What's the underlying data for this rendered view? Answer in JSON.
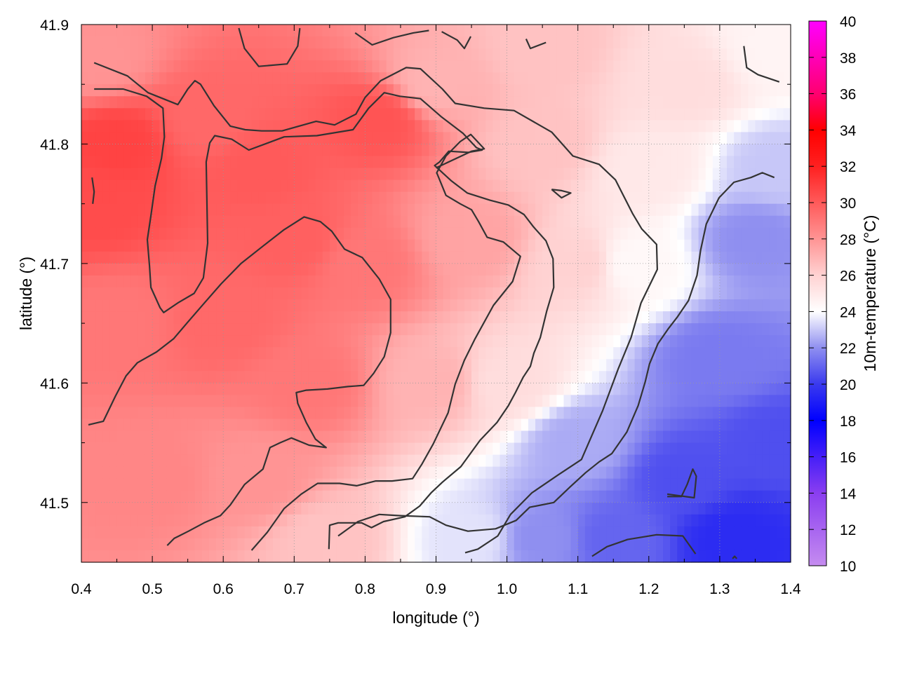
{
  "chart_data": {
    "type": "heatmap",
    "title": "",
    "xlabel": "longitude (°)",
    "ylabel": "latitude (°)",
    "colorbar_label": "10m-temperature (°C)",
    "xlim": [
      0.4,
      1.4
    ],
    "ylim": [
      41.45,
      41.9
    ],
    "x_ticks": [
      "0.4",
      "0.5",
      "0.6",
      "0.7",
      "0.8",
      "0.9",
      "1.0",
      "1.1",
      "1.2",
      "1.3",
      "1.4"
    ],
    "y_ticks": [
      "41.5",
      "41.6",
      "41.7",
      "41.8",
      "41.9"
    ],
    "colorbar_range": [
      10,
      40
    ],
    "colorbar_ticks": [
      "10",
      "12",
      "14",
      "16",
      "18",
      "20",
      "22",
      "24",
      "26",
      "28",
      "30",
      "32",
      "34",
      "36",
      "38",
      "40"
    ],
    "colormap": [
      [
        10,
        "#c58cf0"
      ],
      [
        14,
        "#8a3ef0"
      ],
      [
        18,
        "#0000ff"
      ],
      [
        20,
        "#3a3aee"
      ],
      [
        22,
        "#8f8ff0"
      ],
      [
        24,
        "#ffffff"
      ],
      [
        26,
        "#ffd2d2"
      ],
      [
        28,
        "#ff9494"
      ],
      [
        30,
        "#ff5a5a"
      ],
      [
        32,
        "#ff2020"
      ],
      [
        34,
        "#ff0000"
      ],
      [
        36,
        "#ff0070"
      ],
      [
        40,
        "#ff00ff"
      ]
    ],
    "grid": true,
    "legend": "colorbar-right",
    "contour_interval": 2,
    "temperature_samples": [
      {
        "lon": 0.45,
        "lat": 41.8,
        "t": 30.8
      },
      {
        "lon": 0.42,
        "lat": 41.75,
        "t": 30.5
      },
      {
        "lon": 0.58,
        "lat": 41.82,
        "t": 29.5
      },
      {
        "lon": 0.65,
        "lat": 41.78,
        "t": 30.0
      },
      {
        "lon": 0.82,
        "lat": 41.82,
        "t": 30.2
      },
      {
        "lon": 0.45,
        "lat": 41.65,
        "t": 29.0
      },
      {
        "lon": 0.6,
        "lat": 41.65,
        "t": 29.5
      },
      {
        "lon": 0.7,
        "lat": 41.72,
        "t": 29.8
      },
      {
        "lon": 0.72,
        "lat": 41.6,
        "t": 29.0
      },
      {
        "lon": 0.8,
        "lat": 41.7,
        "t": 29.0
      },
      {
        "lon": 0.5,
        "lat": 41.52,
        "t": 28.5
      },
      {
        "lon": 0.65,
        "lat": 41.52,
        "t": 28.0
      },
      {
        "lon": 0.42,
        "lat": 41.87,
        "t": 28.0
      },
      {
        "lon": 0.9,
        "lat": 41.85,
        "t": 27.0
      },
      {
        "lon": 0.95,
        "lat": 41.72,
        "t": 27.5
      },
      {
        "lon": 0.9,
        "lat": 41.6,
        "t": 27.0
      },
      {
        "lon": 0.75,
        "lat": 41.47,
        "t": 26.5
      },
      {
        "lon": 1.05,
        "lat": 41.8,
        "t": 26.5
      },
      {
        "lon": 1.1,
        "lat": 41.7,
        "t": 26.0
      },
      {
        "lon": 1.0,
        "lat": 41.6,
        "t": 25.5
      },
      {
        "lon": 1.05,
        "lat": 41.88,
        "t": 26.5
      },
      {
        "lon": 1.25,
        "lat": 41.85,
        "t": 25.5
      },
      {
        "lon": 1.38,
        "lat": 41.88,
        "t": 24.5
      },
      {
        "lon": 1.18,
        "lat": 41.7,
        "t": 24.3
      },
      {
        "lon": 1.2,
        "lat": 41.78,
        "t": 25.0
      },
      {
        "lon": 1.1,
        "lat": 41.55,
        "t": 22.5
      },
      {
        "lon": 0.95,
        "lat": 41.47,
        "t": 23.5
      },
      {
        "lon": 1.05,
        "lat": 41.47,
        "t": 22.0
      },
      {
        "lon": 1.3,
        "lat": 41.62,
        "t": 21.5
      },
      {
        "lon": 1.35,
        "lat": 41.72,
        "t": 22.0
      },
      {
        "lon": 1.38,
        "lat": 41.78,
        "t": 23.0
      },
      {
        "lon": 1.25,
        "lat": 41.52,
        "t": 20.5
      },
      {
        "lon": 1.32,
        "lat": 41.47,
        "t": 19.5
      },
      {
        "lon": 1.15,
        "lat": 41.47,
        "t": 21.0
      },
      {
        "lon": 1.38,
        "lat": 41.55,
        "t": 20.5
      }
    ],
    "contours": [
      [
        [
          0.418,
          41.868
        ],
        [
          0.465,
          41.857
        ],
        [
          0.494,
          41.843
        ],
        [
          0.536,
          41.833
        ],
        [
          0.55,
          41.846
        ],
        [
          0.56,
          41.853
        ],
        [
          0.568,
          41.85
        ],
        [
          0.587,
          41.832
        ],
        [
          0.61,
          41.815
        ],
        [
          0.631,
          41.812
        ],
        [
          0.654,
          41.811
        ],
        [
          0.683,
          41.811
        ],
        [
          0.731,
          41.819
        ],
        [
          0.757,
          41.816
        ],
        [
          0.787,
          41.825
        ],
        [
          0.8,
          41.839
        ],
        [
          0.822,
          41.853
        ],
        [
          0.858,
          41.864
        ],
        [
          0.878,
          41.863
        ],
        [
          0.909,
          41.846
        ],
        [
          0.927,
          41.834
        ],
        [
          0.968,
          41.83
        ],
        [
          1.01,
          41.828
        ],
        [
          1.063,
          41.81
        ],
        [
          1.093,
          41.79
        ],
        [
          1.13,
          41.783
        ],
        [
          1.153,
          41.77
        ],
        [
          1.177,
          41.742
        ],
        [
          1.19,
          41.729
        ],
        [
          1.211,
          41.716
        ],
        [
          1.212,
          41.695
        ],
        [
          1.189,
          41.667
        ],
        [
          1.175,
          41.638
        ],
        [
          1.157,
          41.612
        ],
        [
          1.135,
          41.577
        ],
        [
          1.105,
          41.536
        ],
        [
          1.072,
          41.523
        ],
        [
          1.035,
          41.508
        ],
        [
          1.005,
          41.49
        ],
        [
          0.987,
          41.472
        ],
        [
          0.959,
          41.461
        ],
        [
          0.941,
          41.458
        ]
      ],
      [
        [
          0.418,
          41.846
        ],
        [
          0.459,
          41.846
        ],
        [
          0.492,
          41.84
        ],
        [
          0.515,
          41.83
        ],
        [
          0.517,
          41.806
        ],
        [
          0.513,
          41.788
        ],
        [
          0.504,
          41.765
        ],
        [
          0.498,
          41.74
        ],
        [
          0.493,
          41.72
        ],
        [
          0.496,
          41.698
        ],
        [
          0.498,
          41.68
        ],
        [
          0.511,
          41.663
        ],
        [
          0.516,
          41.659
        ],
        [
          0.536,
          41.667
        ],
        [
          0.559,
          41.675
        ],
        [
          0.572,
          41.688
        ],
        [
          0.578,
          41.717
        ],
        [
          0.577,
          41.753
        ],
        [
          0.576,
          41.785
        ],
        [
          0.581,
          41.801
        ],
        [
          0.588,
          41.807
        ],
        [
          0.612,
          41.804
        ],
        [
          0.636,
          41.795
        ],
        [
          0.686,
          41.806
        ],
        [
          0.732,
          41.807
        ],
        [
          0.783,
          41.812
        ],
        [
          0.805,
          41.83
        ],
        [
          0.827,
          41.843
        ],
        [
          0.849,
          41.84
        ],
        [
          0.878,
          41.838
        ],
        [
          0.907,
          41.823
        ],
        [
          0.938,
          41.809
        ],
        [
          0.957,
          41.797
        ],
        [
          0.965,
          41.795
        ],
        [
          0.945,
          41.793
        ],
        [
          0.918,
          41.794
        ],
        [
          0.905,
          41.785
        ],
        [
          0.898,
          41.782
        ],
        [
          0.922,
          41.769
        ],
        [
          0.944,
          41.759
        ],
        [
          0.976,
          41.753
        ],
        [
          1.002,
          41.749
        ],
        [
          1.024,
          41.741
        ],
        [
          1.037,
          41.731
        ],
        [
          1.055,
          41.719
        ],
        [
          1.065,
          41.704
        ],
        [
          1.066,
          41.68
        ],
        [
          1.056,
          41.66
        ],
        [
          1.047,
          41.638
        ],
        [
          1.038,
          41.625
        ],
        [
          1.033,
          41.614
        ],
        [
          1.023,
          41.605
        ],
        [
          1.012,
          41.592
        ],
        [
          1.002,
          41.581
        ],
        [
          0.986,
          41.567
        ],
        [
          0.962,
          41.552
        ],
        [
          0.935,
          41.53
        ],
        [
          0.909,
          41.517
        ],
        [
          0.893,
          41.508
        ],
        [
          0.877,
          41.497
        ],
        [
          0.856,
          41.488
        ],
        [
          0.826,
          41.484
        ],
        [
          0.809,
          41.479
        ],
        [
          0.795,
          41.483
        ],
        [
          0.762,
          41.483
        ],
        [
          0.75,
          41.481
        ],
        [
          0.749,
          41.461
        ]
      ],
      [
        [
          0.41,
          41.565
        ],
        [
          0.431,
          41.568
        ],
        [
          0.448,
          41.589
        ],
        [
          0.463,
          41.606
        ],
        [
          0.479,
          41.617
        ],
        [
          0.506,
          41.626
        ],
        [
          0.53,
          41.637
        ],
        [
          0.55,
          41.651
        ],
        [
          0.572,
          41.666
        ],
        [
          0.597,
          41.683
        ],
        [
          0.625,
          41.7
        ],
        [
          0.657,
          41.715
        ],
        [
          0.685,
          41.728
        ],
        [
          0.714,
          41.739
        ],
        [
          0.737,
          41.735
        ],
        [
          0.753,
          41.727
        ],
        [
          0.771,
          41.712
        ],
        [
          0.796,
          41.705
        ],
        [
          0.82,
          41.687
        ],
        [
          0.836,
          41.67
        ],
        [
          0.836,
          41.642
        ],
        [
          0.827,
          41.622
        ],
        [
          0.812,
          41.608
        ],
        [
          0.798,
          41.598
        ],
        [
          0.776,
          41.597
        ],
        [
          0.747,
          41.595
        ],
        [
          0.717,
          41.594
        ],
        [
          0.703,
          41.592
        ],
        [
          0.705,
          41.583
        ],
        [
          0.717,
          41.567
        ],
        [
          0.73,
          41.553
        ],
        [
          0.745,
          41.546
        ],
        [
          0.721,
          41.548
        ],
        [
          0.696,
          41.554
        ],
        [
          0.68,
          41.55
        ],
        [
          0.666,
          41.546
        ],
        [
          0.656,
          41.528
        ],
        [
          0.63,
          41.515
        ],
        [
          0.61,
          41.498
        ],
        [
          0.596,
          41.489
        ],
        [
          0.573,
          41.483
        ],
        [
          0.551,
          41.476
        ],
        [
          0.531,
          41.47
        ],
        [
          0.521,
          41.464
        ]
      ],
      [
        [
          0.64,
          41.46
        ],
        [
          0.662,
          41.475
        ],
        [
          0.686,
          41.495
        ],
        [
          0.71,
          41.507
        ],
        [
          0.733,
          41.516
        ],
        [
          0.764,
          41.516
        ],
        [
          0.788,
          41.514
        ],
        [
          0.815,
          41.518
        ],
        [
          0.838,
          41.518
        ],
        [
          0.867,
          41.52
        ],
        [
          0.88,
          41.532
        ],
        [
          0.896,
          41.549
        ],
        [
          0.917,
          41.575
        ],
        [
          0.927,
          41.599
        ],
        [
          0.94,
          41.619
        ],
        [
          0.955,
          41.637
        ],
        [
          0.981,
          41.665
        ],
        [
          1.008,
          41.685
        ],
        [
          1.019,
          41.706
        ],
        [
          0.995,
          41.718
        ],
        [
          0.972,
          41.722
        ],
        [
          0.96,
          41.735
        ],
        [
          0.95,
          41.745
        ],
        [
          0.934,
          41.75
        ],
        [
          0.914,
          41.757
        ],
        [
          0.901,
          41.776
        ],
        [
          0.914,
          41.79
        ],
        [
          0.934,
          41.802
        ],
        [
          0.949,
          41.808
        ],
        [
          0.968,
          41.796
        ],
        [
          0.95,
          41.794
        ],
        [
          0.9,
          41.78
        ]
      ],
      [
        [
          0.762,
          41.472
        ],
        [
          0.79,
          41.484
        ],
        [
          0.82,
          41.49
        ],
        [
          0.848,
          41.489
        ],
        [
          0.891,
          41.488
        ],
        [
          0.914,
          41.481
        ],
        [
          0.945,
          41.476
        ],
        [
          0.984,
          41.478
        ],
        [
          1.013,
          41.485
        ],
        [
          1.032,
          41.496
        ],
        [
          1.066,
          41.5
        ],
        [
          1.089,
          41.513
        ],
        [
          1.111,
          41.525
        ],
        [
          1.13,
          41.534
        ],
        [
          1.148,
          41.541
        ],
        [
          1.169,
          41.559
        ],
        [
          1.185,
          41.581
        ],
        [
          1.195,
          41.601
        ],
        [
          1.201,
          41.616
        ],
        [
          1.213,
          41.633
        ],
        [
          1.227,
          41.645
        ],
        [
          1.24,
          41.655
        ],
        [
          1.256,
          41.669
        ],
        [
          1.268,
          41.69
        ],
        [
          1.273,
          41.711
        ],
        [
          1.281,
          41.733
        ],
        [
          1.299,
          41.755
        ],
        [
          1.32,
          41.768
        ],
        [
          1.344,
          41.772
        ],
        [
          1.36,
          41.776
        ],
        [
          1.377,
          41.772
        ]
      ],
      [
        [
          1.063,
          41.762
        ],
        [
          1.077,
          41.761
        ],
        [
          1.09,
          41.759
        ],
        [
          1.077,
          41.755
        ],
        [
          1.063,
          41.762
        ]
      ],
      [
        [
          1.226,
          41.505
        ],
        [
          1.246,
          41.505
        ],
        [
          1.254,
          41.515
        ],
        [
          1.262,
          41.528
        ],
        [
          1.267,
          41.522
        ],
        [
          1.264,
          41.504
        ],
        [
          1.226,
          41.507
        ]
      ],
      [
        [
          1.12,
          41.455
        ],
        [
          1.141,
          41.463
        ],
        [
          1.17,
          41.469
        ],
        [
          1.211,
          41.473
        ],
        [
          1.248,
          41.472
        ],
        [
          1.266,
          41.457
        ]
      ],
      [
        [
          1.318,
          41.453
        ],
        [
          1.321,
          41.455
        ],
        [
          1.324,
          41.453
        ]
      ],
      [
        [
          1.334,
          41.882
        ],
        [
          1.338,
          41.864
        ],
        [
          1.354,
          41.858
        ],
        [
          1.384,
          41.852
        ]
      ],
      [
        [
          0.415,
          41.772
        ],
        [
          0.418,
          41.76
        ],
        [
          0.416,
          41.75
        ]
      ],
      [
        [
          0.622,
          41.897
        ],
        [
          0.63,
          41.88
        ],
        [
          0.65,
          41.865
        ],
        [
          0.69,
          41.867
        ],
        [
          0.705,
          41.882
        ],
        [
          0.708,
          41.897
        ]
      ],
      [
        [
          0.786,
          41.893
        ],
        [
          0.81,
          41.883
        ],
        [
          0.84,
          41.889
        ],
        [
          0.868,
          41.893
        ],
        [
          0.89,
          41.895
        ]
      ],
      [
        [
          0.908,
          41.894
        ],
        [
          0.93,
          41.887
        ],
        [
          0.94,
          41.88
        ],
        [
          0.949,
          41.89
        ]
      ],
      [
        [
          1.027,
          41.888
        ],
        [
          1.033,
          41.88
        ],
        [
          1.055,
          41.885
        ]
      ]
    ]
  }
}
